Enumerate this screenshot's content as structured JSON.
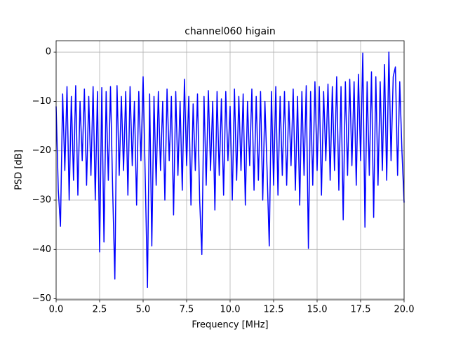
{
  "chart_data": {
    "type": "line",
    "title": "channel060 higain",
    "xlabel": "Frequency [MHz]",
    "ylabel": "PSD [dB]",
    "xlim": [
      0,
      20
    ],
    "ylim": [
      -50.2,
      2.3
    ],
    "grid": true,
    "xticks": [
      {
        "value": 0,
        "label": "0.0"
      },
      2.5,
      {
        "value": 5,
        "label": "5.0"
      },
      7.5,
      {
        "value": 10,
        "label": "10.0"
      },
      12.5,
      {
        "value": 15,
        "label": "15.0"
      },
      17.5,
      {
        "value": 20,
        "label": "20.0"
      }
    ],
    "yticks": [
      {
        "value": -50,
        "label": "−50"
      },
      {
        "value": -40,
        "label": "−40"
      },
      {
        "value": -30,
        "label": "−30"
      },
      {
        "value": -20,
        "label": "−20"
      },
      {
        "value": -10,
        "label": "−10"
      },
      0
    ],
    "series": [
      {
        "color": "#0000ff",
        "x": [
          0,
          0.125,
          0.25,
          0.375,
          0.5,
          0.625,
          0.75,
          0.875,
          1,
          1.125,
          1.25,
          1.375,
          1.5,
          1.625,
          1.75,
          1.875,
          2,
          2.125,
          2.25,
          2.375,
          2.5,
          2.625,
          2.75,
          2.875,
          3,
          3.125,
          3.25,
          3.375,
          3.5,
          3.625,
          3.75,
          3.875,
          4,
          4.125,
          4.25,
          4.375,
          4.5,
          4.625,
          4.75,
          4.875,
          5,
          5.125,
          5.25,
          5.375,
          5.5,
          5.625,
          5.75,
          5.875,
          6,
          6.125,
          6.25,
          6.375,
          6.5,
          6.625,
          6.75,
          6.875,
          7,
          7.125,
          7.25,
          7.375,
          7.5,
          7.625,
          7.75,
          7.875,
          8,
          8.125,
          8.25,
          8.375,
          8.5,
          8.625,
          8.75,
          8.875,
          9,
          9.125,
          9.25,
          9.375,
          9.5,
          9.625,
          9.75,
          9.875,
          10,
          10.125,
          10.25,
          10.375,
          10.5,
          10.625,
          10.75,
          10.875,
          11,
          11.125,
          11.25,
          11.375,
          11.5,
          11.625,
          11.75,
          11.875,
          12,
          12.125,
          12.25,
          12.375,
          12.5,
          12.625,
          12.75,
          12.875,
          13,
          13.125,
          13.25,
          13.375,
          13.5,
          13.625,
          13.75,
          13.875,
          14,
          14.125,
          14.25,
          14.375,
          14.5,
          14.625,
          14.75,
          14.875,
          15,
          15.125,
          15.25,
          15.375,
          15.5,
          15.625,
          15.75,
          15.875,
          16,
          16.125,
          16.25,
          16.375,
          16.5,
          16.625,
          16.75,
          16.875,
          17,
          17.125,
          17.25,
          17.375,
          17.5,
          17.625,
          17.75,
          17.875,
          18,
          18.125,
          18.25,
          18.375,
          18.5,
          18.625,
          18.75,
          18.875,
          19,
          19.125,
          19.25,
          19.375,
          19.5,
          19.625,
          19.75,
          19.875,
          20
        ],
        "values": [
          -11,
          -28,
          -35.3,
          -8.5,
          -24,
          -7,
          -30,
          -9,
          -26,
          -6.8,
          -29,
          -10,
          -22,
          -7.5,
          -27,
          -9,
          -25,
          -7,
          -30,
          -8,
          -40.5,
          -7.2,
          -38.5,
          -8,
          -26,
          -7,
          -28,
          -46,
          -6.8,
          -25,
          -9,
          -24,
          -8,
          -29,
          -7,
          -23,
          -10,
          -31,
          -8,
          -22,
          -5,
          -26,
          -47.7,
          -8.5,
          -39.3,
          -9,
          -27,
          -8,
          -24,
          -10,
          -30,
          -7.5,
          -22,
          -9,
          -33,
          -8,
          -25,
          -10,
          -28,
          -5.5,
          -23,
          -9,
          -31,
          -10.5,
          -24,
          -8.5,
          -30,
          -41,
          -9,
          -27,
          -7.8,
          -24,
          -10,
          -32,
          -8,
          -25,
          -9.5,
          -29,
          -8,
          -22,
          -11,
          -30,
          -7.5,
          -26,
          -9,
          -24,
          -8.5,
          -31,
          -10,
          -23,
          -7.5,
          -28,
          -9,
          -26,
          -8,
          -30,
          -10,
          -24,
          -39.3,
          -8,
          -27,
          -7,
          -29,
          -9,
          -25,
          -8,
          -27,
          -10,
          -23,
          -7.5,
          -28,
          -9,
          -31,
          -8,
          -25,
          -6.8,
          -39.8,
          -8,
          -27,
          -6,
          -24,
          -7,
          -29,
          -8,
          -22,
          -6.5,
          -26,
          -7,
          -24,
          -5,
          -28,
          -7,
          -34,
          -6,
          -25,
          -5.5,
          -23,
          -6,
          -27,
          -4.5,
          -22,
          -0.2,
          -35.5,
          -6,
          -25,
          -4,
          -33.5,
          -5,
          -27,
          -6,
          -24,
          -2.5,
          -26,
          0,
          -22,
          -5,
          -3,
          -25,
          -6,
          -20,
          -30.5
        ]
      }
    ]
  }
}
